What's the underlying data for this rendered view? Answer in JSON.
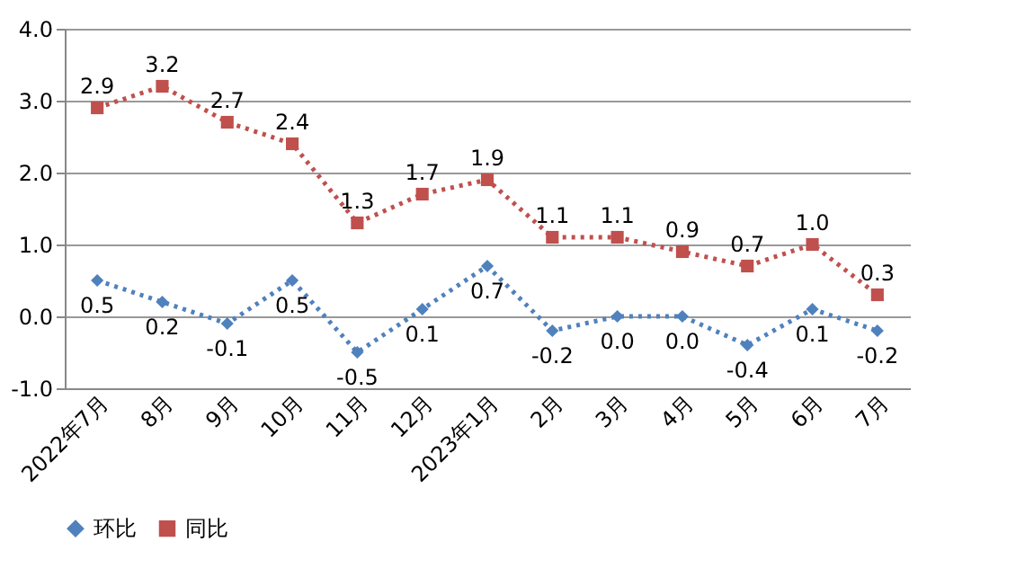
{
  "chart_data": {
    "type": "line",
    "categories": [
      "2022年7月",
      "8月",
      "9月",
      "10月",
      "11月",
      "12月",
      "2023年1月",
      "2月",
      "3月",
      "4月",
      "5月",
      "6月",
      "7月"
    ],
    "series": [
      {
        "name": "环比",
        "color": "#4f81bd",
        "marker": "diamond",
        "values": [
          0.5,
          0.2,
          -0.1,
          0.5,
          -0.5,
          0.1,
          0.7,
          -0.2,
          0.0,
          0.0,
          -0.4,
          0.1,
          -0.2
        ],
        "value_labels": [
          "0.5",
          "0.2",
          "-0.1",
          "0.5",
          "-0.5",
          "0.1",
          "0.7",
          "-0.2",
          "0.0",
          "0.0",
          "-0.4",
          "0.1",
          "-0.2"
        ]
      },
      {
        "name": "同比",
        "color": "#c0504d",
        "marker": "square",
        "values": [
          2.9,
          3.2,
          2.7,
          2.4,
          1.3,
          1.7,
          1.9,
          1.1,
          1.1,
          0.9,
          0.7,
          1.0,
          0.3
        ],
        "value_labels": [
          "2.9",
          "3.2",
          "2.7",
          "2.4",
          "1.3",
          "1.7",
          "1.9",
          "1.1",
          "1.1",
          "0.9",
          "0.7",
          "1.0",
          "0.3"
        ]
      }
    ],
    "ylim": [
      -1.0,
      4.0
    ],
    "yticks": [
      {
        "value": -1,
        "label": "-1.0"
      },
      {
        "value": 0,
        "label": "0.0"
      },
      {
        "value": 1,
        "label": "1.0"
      },
      {
        "value": 2,
        "label": "2.0"
      },
      {
        "value": 3,
        "label": "3.0"
      },
      {
        "value": 4,
        "label": "4.0"
      }
    ],
    "grid": "y",
    "legend": "bottom",
    "line_style": "dotted"
  }
}
